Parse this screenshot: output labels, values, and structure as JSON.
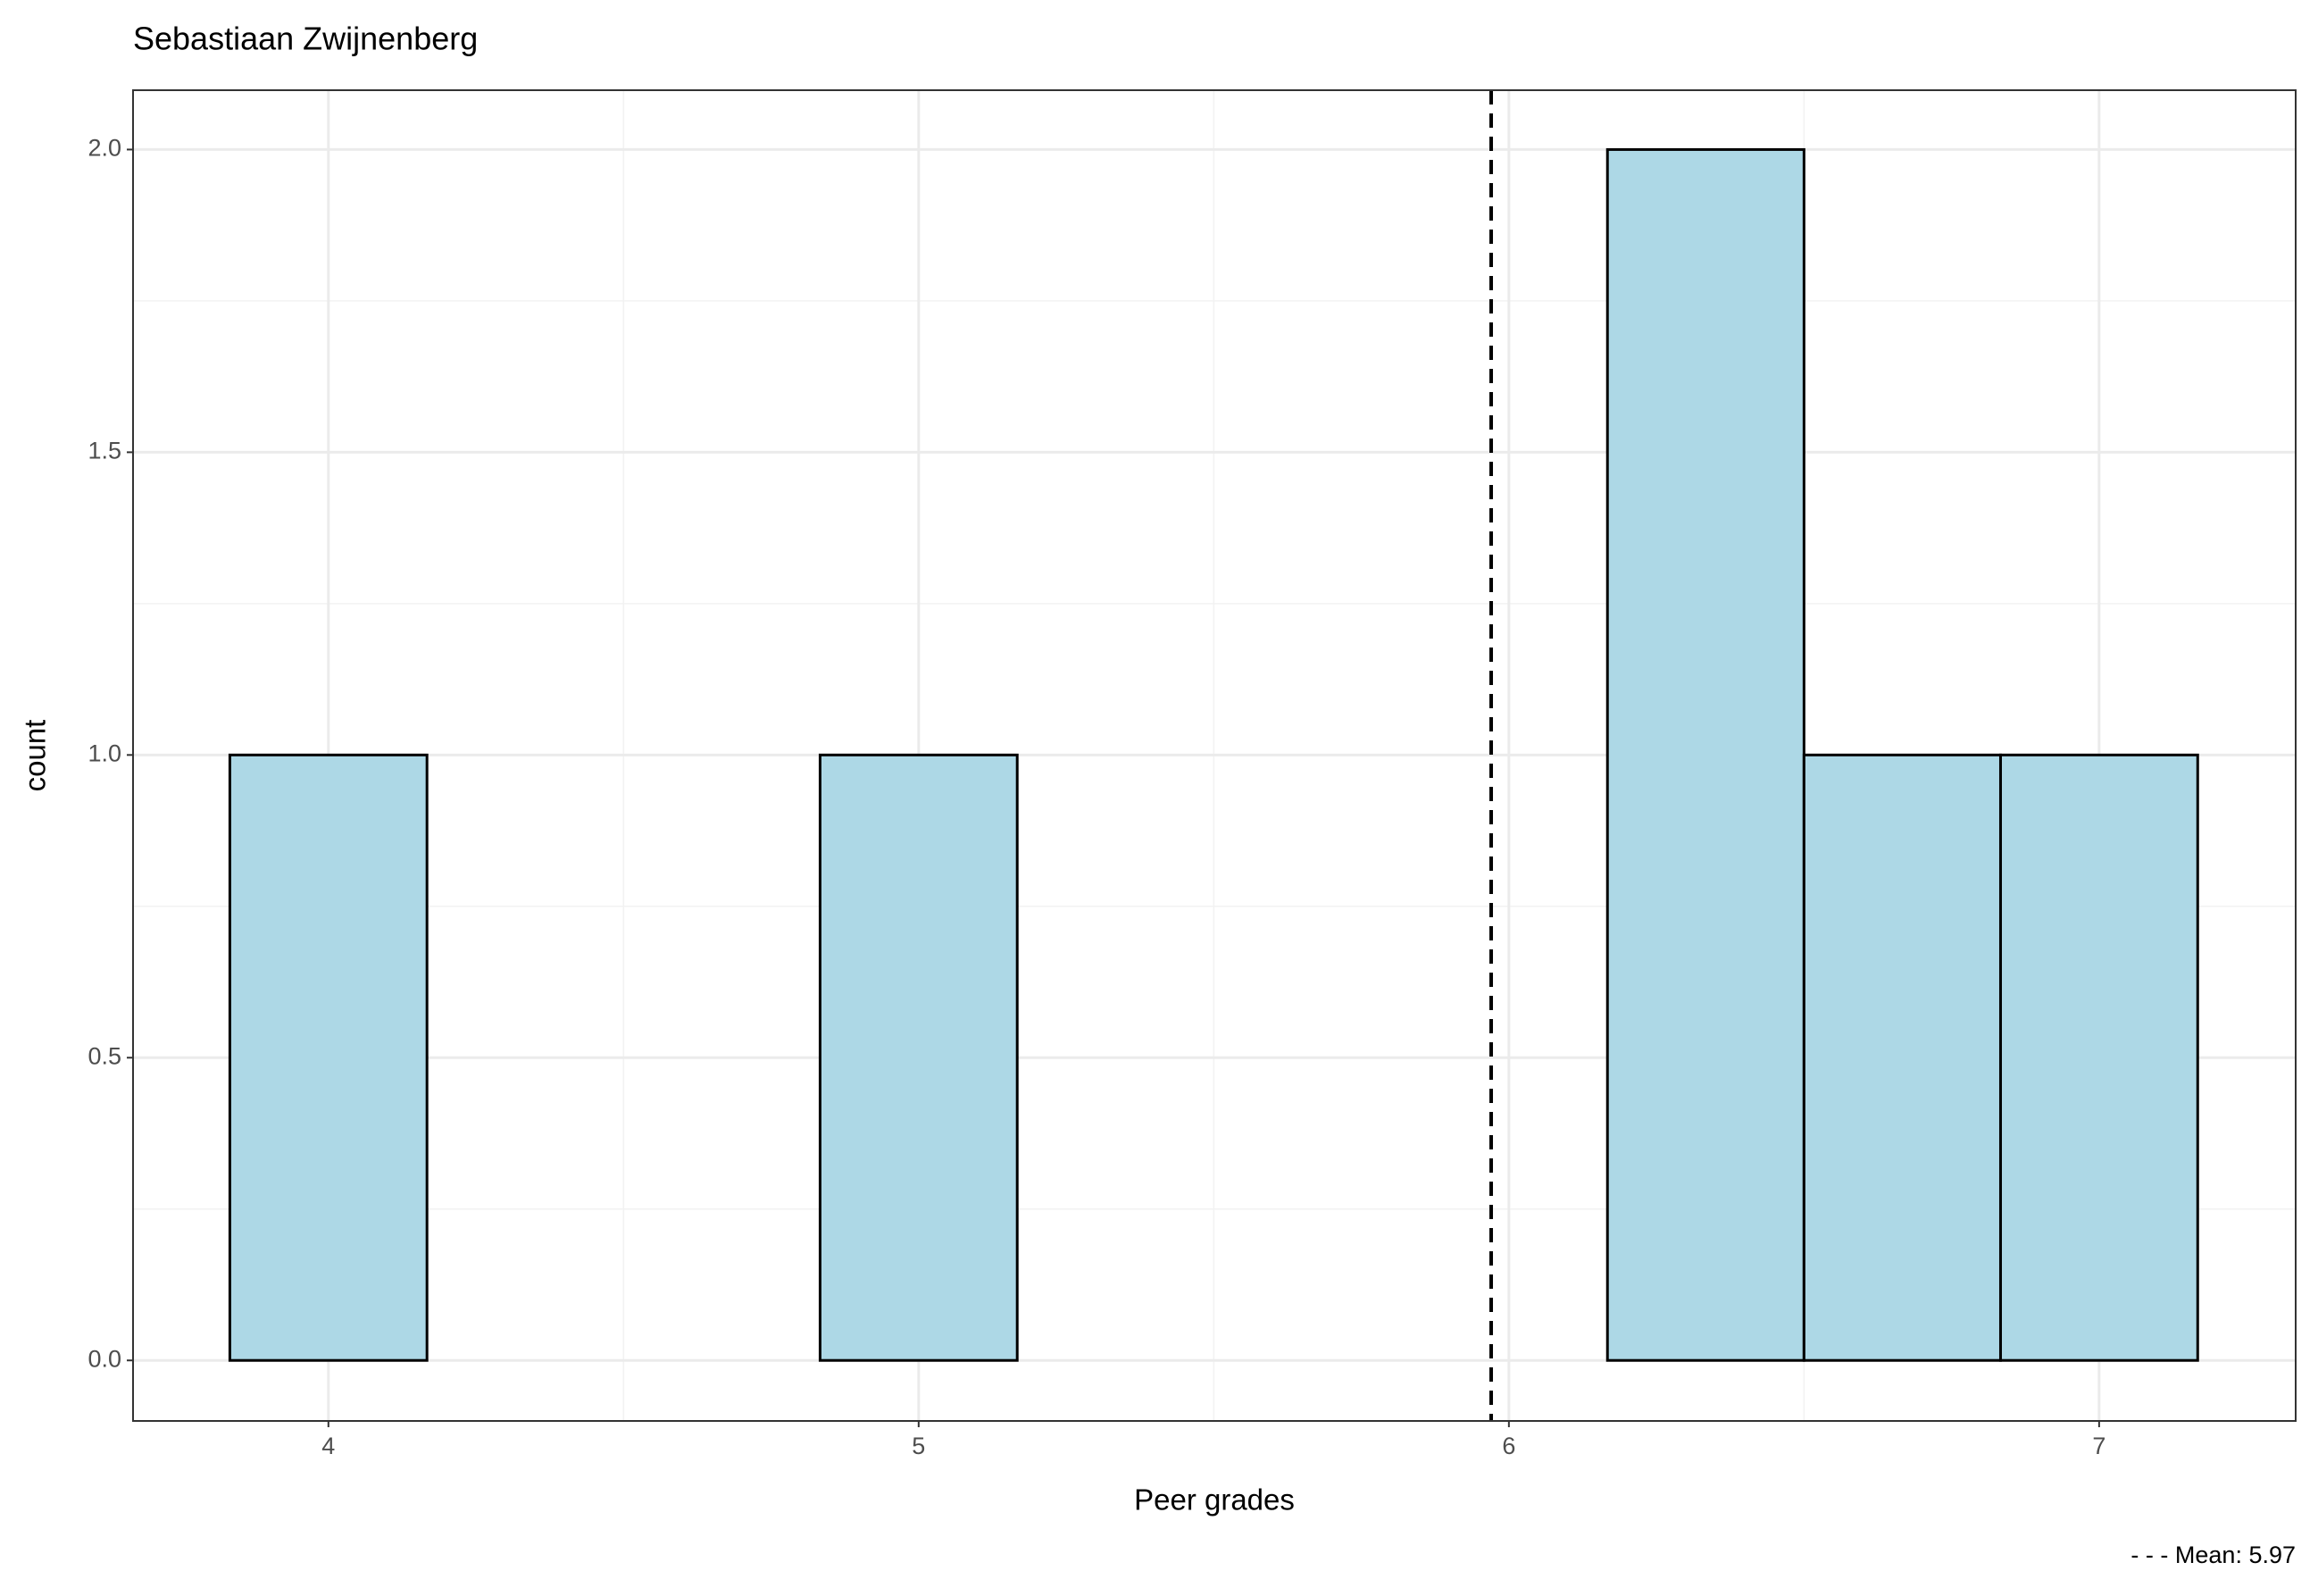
{
  "chart_data": {
    "type": "histogram",
    "title": "Sebastiaan Zwijnenberg",
    "x_label": "Peer grades",
    "y_label": "count",
    "caption": "- - - Mean: 5.97",
    "bins": [
      3.833,
      4.167,
      4.5,
      4.833,
      5.167,
      5.5,
      5.833,
      6.167,
      6.5,
      6.833,
      7.167
    ],
    "values": [
      1,
      0,
      0,
      1,
      0,
      0,
      0,
      2,
      1,
      1
    ],
    "color": "#add8e6",
    "edge_color": "#000000",
    "mean": 5.97,
    "xlim": [
      3.669,
      7.333
    ],
    "ylim": [
      -0.1,
      2.098
    ],
    "xticks": [
      4,
      5,
      6,
      7
    ],
    "yticks": [
      {
        "value": 0,
        "label": "0.0"
      },
      {
        "value": 0.5,
        "label": "0.5"
      },
      {
        "value": 1,
        "label": "1.0"
      },
      {
        "value": 1.5,
        "label": "1.5"
      },
      {
        "value": 2,
        "label": "2.0"
      }
    ],
    "x_minor_ticks": [
      4.5,
      5.5,
      6.5
    ],
    "y_minor_ticks": [
      0.25,
      0.75,
      1.25,
      1.75
    ],
    "grid": true
  }
}
